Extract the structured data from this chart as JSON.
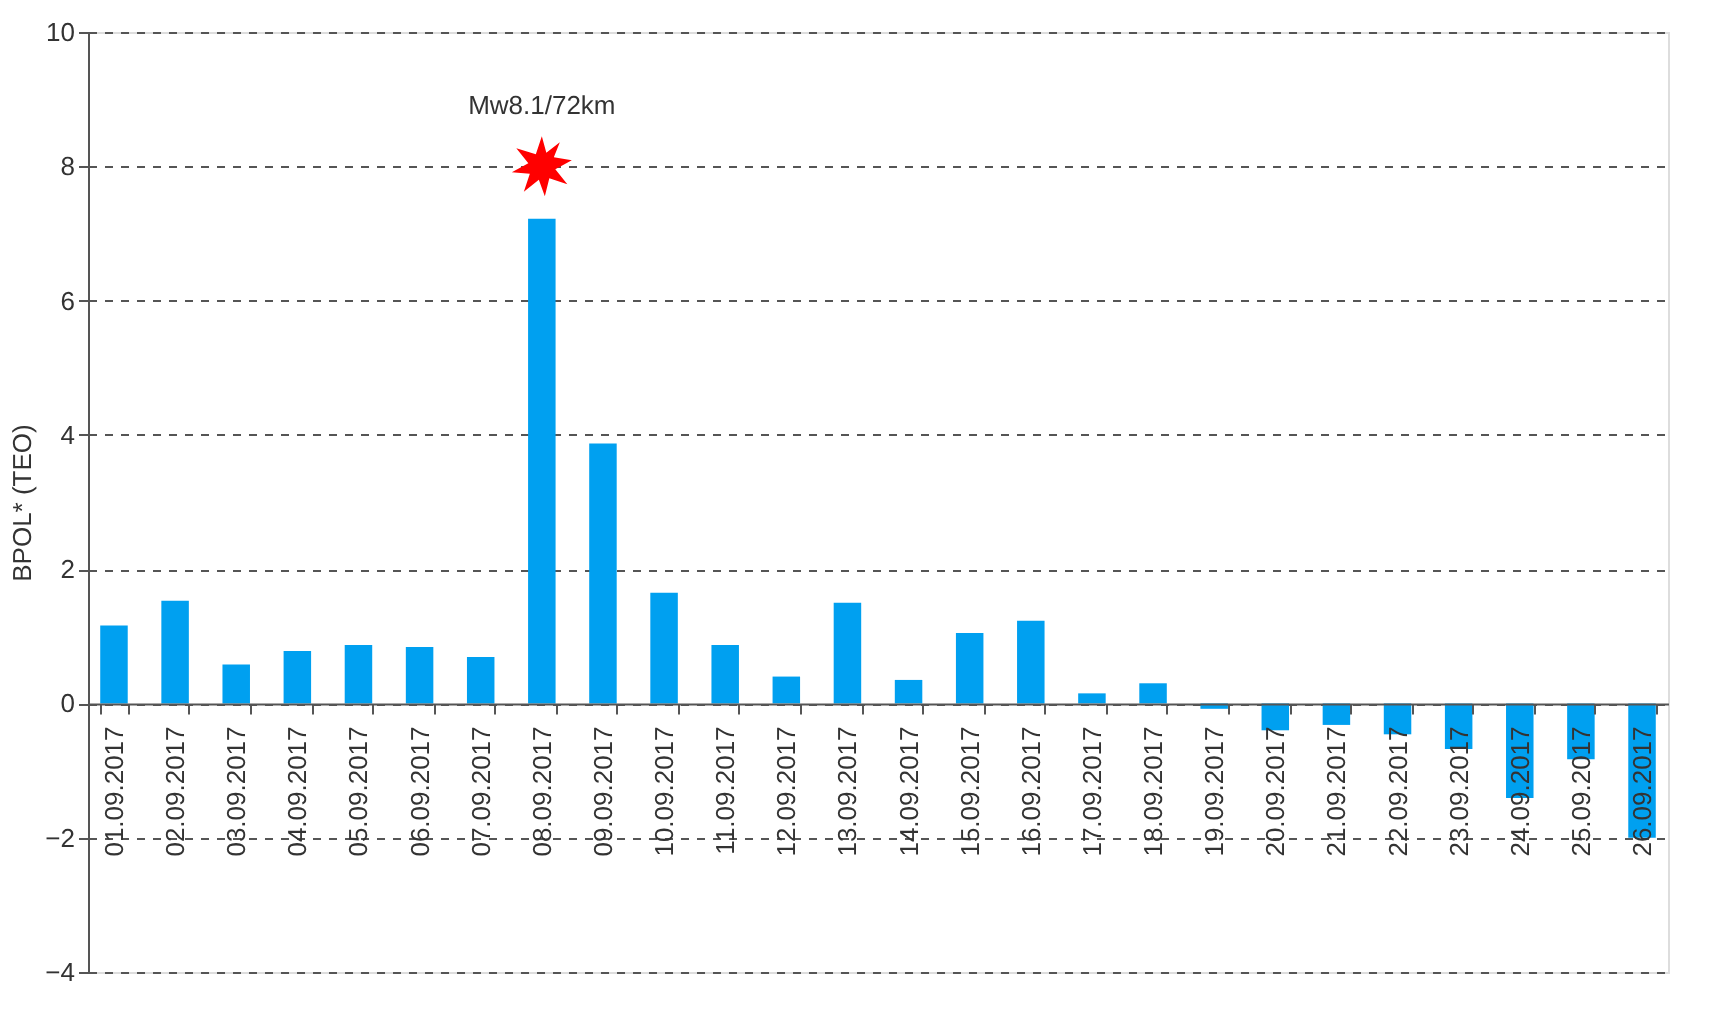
{
  "chart_data": {
    "type": "bar",
    "ylabel": "BPOL* (TEO)",
    "categories": [
      "01.09.2017",
      "02.09.2017",
      "03.09.2017",
      "04.09.2017",
      "05.09.2017",
      "06.09.2017",
      "07.09.2017",
      "08.09.2017",
      "09.09.2017",
      "10.09.2017",
      "11.09.2017",
      "12.09.2017",
      "13.09.2017",
      "14.09.2017",
      "15.09.2017",
      "16.09.2017",
      "17.09.2017",
      "18.09.2017",
      "19.09.2017",
      "20.09.2017",
      "21.09.2017",
      "22.09.2017",
      "23.09.2017",
      "24.09.2017",
      "25.09.2017",
      "26.09.2017"
    ],
    "values": [
      1.16,
      1.53,
      0.58,
      0.78,
      0.87,
      0.84,
      0.69,
      7.22,
      3.87,
      1.65,
      0.87,
      0.4,
      1.5,
      0.35,
      1.05,
      1.23,
      0.15,
      0.3,
      -0.08,
      -0.4,
      -0.32,
      -0.46,
      -0.68,
      -1.41,
      -0.83,
      -2.0
    ],
    "color": "#00a0f0",
    "ylim": [
      -4,
      10
    ],
    "yticks": [
      -4,
      -2,
      0,
      2,
      4,
      6,
      8,
      10
    ],
    "grid": "y",
    "annotations": [
      {
        "text": "Mw8.1/72km",
        "x": "08.09.2017",
        "y": 8
      }
    ]
  }
}
